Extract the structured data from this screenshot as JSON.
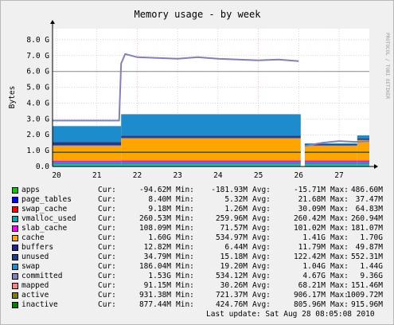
{
  "chart_data": {
    "type": "area",
    "title": "Memory usage - by week",
    "ylabel": "Bytes",
    "side_label": "PROTOCOL / TOBI OETIKER",
    "ylim": [
      0,
      8.7
    ],
    "y_unit": "G",
    "y_ticks": [
      "0.0",
      "1.0 G",
      "2.0 G",
      "3.0 G",
      "4.0 G",
      "5.0 G",
      "6.0 G",
      "7.0 G",
      "8.0 G"
    ],
    "y_tick_values": [
      0,
      1,
      2,
      3,
      4,
      5,
      6,
      7,
      8
    ],
    "x_ticks": [
      "20",
      "21",
      "22",
      "23",
      "24",
      "25",
      "26",
      "27"
    ],
    "x_tick_values": [
      20,
      21,
      22,
      23,
      24,
      25,
      26,
      27
    ],
    "xlim": [
      19.9,
      27.75
    ],
    "total_memory_line": 6.0,
    "gap": [
      26.05,
      26.15
    ],
    "stacked_series": [
      {
        "name": "apps",
        "color": "#00cc00",
        "segments": [
          [
            0.0,
            0.0,
            0.0
          ],
          [
            0.0,
            0.0
          ]
        ]
      },
      {
        "name": "page_tables",
        "color": "#0000ff",
        "segments": [
          [
            0.01,
            0.01,
            0.01
          ],
          [
            0.01,
            0.01
          ]
        ]
      },
      {
        "name": "swap_cache",
        "color": "#ff0000",
        "segments": [
          [
            0.01,
            0.01,
            0.01
          ],
          [
            0.01,
            0.01
          ]
        ]
      },
      {
        "name": "vmalloc_used",
        "color": "#00aaaa",
        "segments": [
          [
            0.25,
            0.25,
            0.26
          ],
          [
            0.26,
            0.26
          ]
        ]
      },
      {
        "name": "slab_cache",
        "color": "#ff00ff",
        "segments": [
          [
            0.1,
            0.1,
            0.11
          ],
          [
            0.1,
            0.1
          ]
        ]
      },
      {
        "name": "cache",
        "color": "#ffa500",
        "segments": [
          [
            0.95,
            0.98,
            1.4
          ],
          [
            0.95,
            1.3
          ]
        ]
      },
      {
        "name": "buffers",
        "color": "#2020a0",
        "segments": [
          [
            0.03,
            0.03,
            0.04
          ],
          [
            0.03,
            0.03
          ]
        ]
      },
      {
        "name": "unused",
        "color": "#1e3c8c",
        "segments": [
          [
            0.2,
            0.2,
            0.12
          ],
          [
            0.05,
            0.05
          ]
        ]
      },
      {
        "name": "swap",
        "color": "#1c8ccc",
        "segments": [
          [
            1.0,
            1.0,
            1.35
          ],
          [
            0.05,
            0.2
          ]
        ]
      }
    ],
    "line_series": [
      {
        "name": "committed",
        "color": "#8080c0",
        "points": [
          [
            19.9,
            2.9
          ],
          [
            21.55,
            2.9
          ],
          [
            21.6,
            6.5
          ],
          [
            21.7,
            7.1
          ],
          [
            22.0,
            6.9
          ],
          [
            22.5,
            6.85
          ],
          [
            23.0,
            6.8
          ],
          [
            23.5,
            6.9
          ],
          [
            24.0,
            6.8
          ],
          [
            24.5,
            6.75
          ],
          [
            25.0,
            6.7
          ],
          [
            25.5,
            6.75
          ],
          [
            26.0,
            6.65
          ]
        ],
        "points2": [
          [
            26.15,
            1.3
          ],
          [
            26.6,
            1.5
          ],
          [
            27.0,
            1.6
          ],
          [
            27.4,
            1.55
          ],
          [
            27.75,
            1.6
          ]
        ]
      },
      {
        "name": "mapped",
        "color": "#ff8080",
        "value": 0.09
      },
      {
        "name": "active",
        "color": "#808000",
        "value": 0.93
      },
      {
        "name": "inactive",
        "color": "#008000",
        "value": 0.88
      }
    ]
  },
  "legend": {
    "headers": {
      "cur": "Cur:",
      "min": "Min:",
      "avg": "Avg:",
      "max": "Max:"
    },
    "rows": [
      {
        "name": "apps",
        "color": "#00cc00",
        "cur": "-94.62M",
        "min": "-181.93M",
        "avg": "-15.71M",
        "max": "486.60M"
      },
      {
        "name": "page_tables",
        "color": "#0000ff",
        "cur": "8.40M",
        "min": "5.32M",
        "avg": "21.68M",
        "max": "37.47M"
      },
      {
        "name": "swap_cache",
        "color": "#ff0000",
        "cur": "9.18M",
        "min": "1.26M",
        "avg": "30.09M",
        "max": "64.83M"
      },
      {
        "name": "vmalloc_used",
        "color": "#00aaaa",
        "cur": "260.53M",
        "min": "259.96M",
        "avg": "260.42M",
        "max": "260.94M"
      },
      {
        "name": "slab_cache",
        "color": "#ff00ff",
        "cur": "108.09M",
        "min": "71.57M",
        "avg": "101.02M",
        "max": "181.07M"
      },
      {
        "name": "cache",
        "color": "#ffa500",
        "cur": "1.60G",
        "min": "534.97M",
        "avg": "1.41G",
        "max": "1.70G"
      },
      {
        "name": "buffers",
        "color": "#2020a0",
        "cur": "12.82M",
        "min": "6.44M",
        "avg": "11.79M",
        "max": "49.87M"
      },
      {
        "name": "unused",
        "color": "#1e3c8c",
        "cur": "34.79M",
        "min": "15.18M",
        "avg": "122.42M",
        "max": "552.31M"
      },
      {
        "name": "swap",
        "color": "#1c8ccc",
        "cur": "186.04M",
        "min": "19.20M",
        "avg": "1.04G",
        "max": "1.44G"
      },
      {
        "name": "committed",
        "color": "#8080c0",
        "cur": "1.53G",
        "min": "534.12M",
        "avg": "4.67G",
        "max": "9.36G"
      },
      {
        "name": "mapped",
        "color": "#ff8080",
        "cur": "91.15M",
        "min": "30.26M",
        "avg": "68.21M",
        "max": "151.46M"
      },
      {
        "name": "active",
        "color": "#808000",
        "cur": "931.38M",
        "min": "721.37M",
        "avg": "906.17M",
        "max": "1009.72M"
      },
      {
        "name": "inactive",
        "color": "#008000",
        "cur": "877.44M",
        "min": "424.76M",
        "avg": "805.96M",
        "max": "915.96M"
      }
    ]
  },
  "last_update": "Last update: Sat Aug 28 08:05:08 2010"
}
